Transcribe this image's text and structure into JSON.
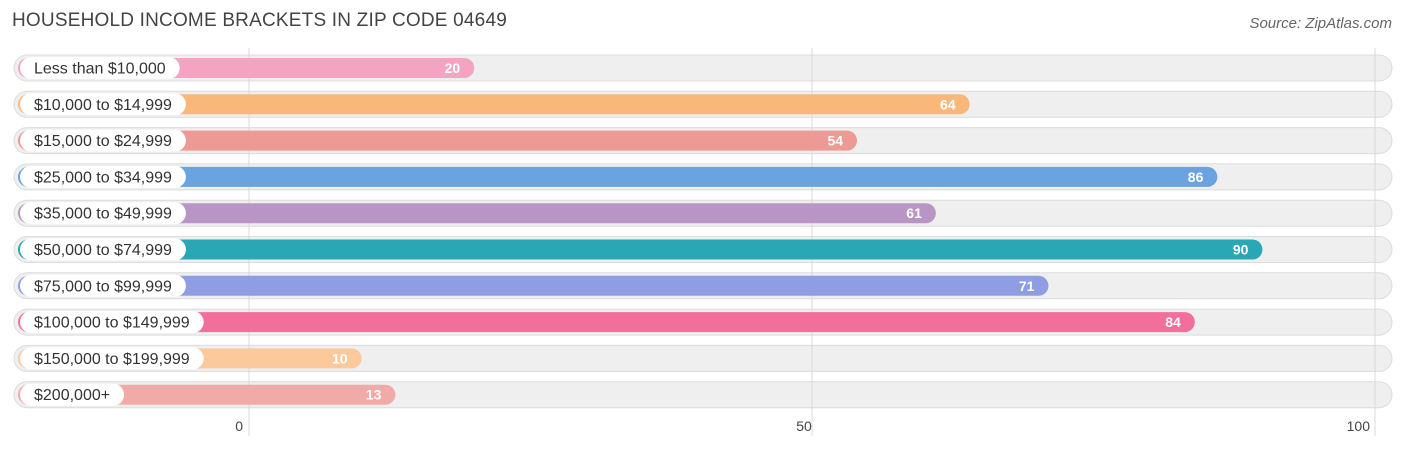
{
  "header": {
    "title": "HOUSEHOLD INCOME BRACKETS IN ZIP CODE 04649",
    "source": "Source: ZipAtlas.com"
  },
  "chart_data": {
    "type": "bar",
    "orientation": "horizontal",
    "title": "HOUSEHOLD INCOME BRACKETS IN ZIP CODE 04649",
    "categories": [
      "Less than $10,000",
      "$10,000 to $14,999",
      "$15,000 to $24,999",
      "$25,000 to $34,999",
      "$35,000 to $49,999",
      "$50,000 to $74,999",
      "$75,000 to $99,999",
      "$100,000 to $149,999",
      "$150,000 to $199,999",
      "$200,000+"
    ],
    "values": [
      20,
      64,
      54,
      86,
      61,
      90,
      71,
      84,
      10,
      13
    ],
    "value_labels": [
      "20",
      "64",
      "54",
      "86",
      "61",
      "90",
      "71",
      "84",
      "10",
      "13"
    ],
    "colors": [
      "#f4a3c0",
      "#f9b87a",
      "#ec9a93",
      "#6aa3e0",
      "#b995c5",
      "#2aa7b5",
      "#8f9de3",
      "#f36f9b",
      "#fbc99c",
      "#f0aaa8"
    ],
    "xlim": [
      0,
      100
    ],
    "xticks": [
      0,
      50,
      100
    ],
    "xtick_labels": [
      "0",
      "50",
      "100"
    ],
    "xlabel": "",
    "ylabel": "",
    "grid": true
  }
}
